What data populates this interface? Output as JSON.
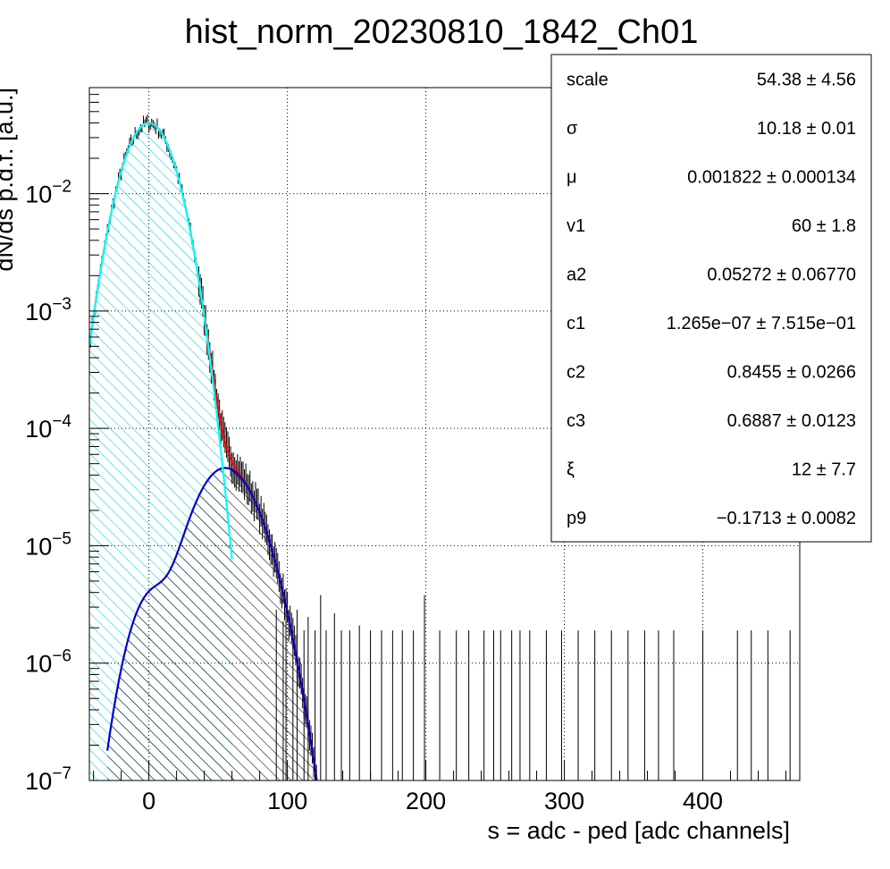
{
  "chart_data": {
    "type": "histogram",
    "title": "hist_norm_20230810_1842_Ch01",
    "xlabel": "s = adc - ped [adc channels]",
    "ylabel": "dN/ds p.d.f. [a.u.]",
    "xlim": [
      -43,
      470
    ],
    "ylim": [
      1e-07,
      0.08
    ],
    "yscale": "log",
    "grid": true,
    "x_ticks": [
      0,
      100,
      200,
      300,
      400
    ],
    "x_tick_labels": [
      "0",
      "100",
      "200",
      "300",
      "400"
    ],
    "y_ticks": [
      1e-07,
      1e-06,
      1e-05,
      0.0001,
      0.001,
      0.01
    ],
    "y_tick_labels": [
      {
        "base": "10",
        "exp": "−7"
      },
      {
        "base": "10",
        "exp": "−6"
      },
      {
        "base": "10",
        "exp": "−5"
      },
      {
        "base": "10",
        "exp": "−4"
      },
      {
        "base": "10",
        "exp": "−3"
      },
      {
        "base": "10",
        "exp": "−2"
      }
    ],
    "stats_box": {
      "placement": "top-right",
      "rows": [
        {
          "name": "scale",
          "value": "54.38 ± 4.56"
        },
        {
          "name": "σ",
          "value": "10.18 ± 0.01"
        },
        {
          "name": "μ",
          "value": "0.001822 ± 0.000134"
        },
        {
          "name": "v1",
          "value": "60 ± 1.8"
        },
        {
          "name": "a2",
          "value": "0.05272 ± 0.06770"
        },
        {
          "name": "c1",
          "value": "1.265e−07 ± 7.515e−01"
        },
        {
          "name": "c2",
          "value": "0.8455 ± 0.0266"
        },
        {
          "name": "c3",
          "value": "0.6887 ± 0.0123"
        },
        {
          "name": "ξ",
          "value": "12 ± 7.7"
        },
        {
          "name": "p9",
          "value": "−0.1713 ± 0.0082"
        }
      ]
    },
    "pedestal": {
      "mu": 0,
      "sigma": 14.5,
      "amplitude": 0.04
    },
    "signal": {
      "mu": 55,
      "sigma": 18,
      "amplitude": 4.6e-05,
      "bump_mu": 2,
      "bump_sigma": 13,
      "bump_amplitude": 3.7e-06,
      "tail": 0.7
    },
    "series": [
      {
        "color": "#ff0000",
        "style": "line"
      },
      {
        "color": "#00ffff",
        "style": "line"
      },
      {
        "color": "#0000cc",
        "style": "line"
      },
      {
        "color": "#000000",
        "style": "points"
      }
    ],
    "sparse_x": [
      92,
      97,
      99,
      104,
      107,
      112,
      115,
      120,
      124,
      128,
      134,
      139,
      145,
      152,
      160,
      168,
      176,
      183,
      191,
      199,
      210,
      222,
      231,
      242,
      249,
      254,
      262,
      268,
      275,
      287,
      298,
      310,
      322,
      334,
      346,
      358,
      368,
      379,
      400,
      425,
      435,
      447,
      463
    ],
    "sparse_y": [
      1.5e-06,
      1.2e-06,
      2e-06,
      1e-06,
      1.5e-06,
      1e-06,
      1.3e-06,
      1e-06,
      2e-06,
      1e-06,
      1.4e-06,
      1e-06,
      1e-06,
      1.1e-06,
      1e-06,
      1e-06,
      1e-06,
      1e-06,
      1e-06,
      2e-06,
      1e-06,
      1e-06,
      1e-06,
      1e-06,
      1e-06,
      1e-06,
      1e-06,
      1e-06,
      1e-06,
      1e-06,
      1e-06,
      1e-06,
      1e-06,
      1e-06,
      1e-06,
      1e-06,
      1e-06,
      1e-06,
      1e-06,
      1e-06,
      1e-06,
      1e-06,
      1e-06
    ]
  }
}
